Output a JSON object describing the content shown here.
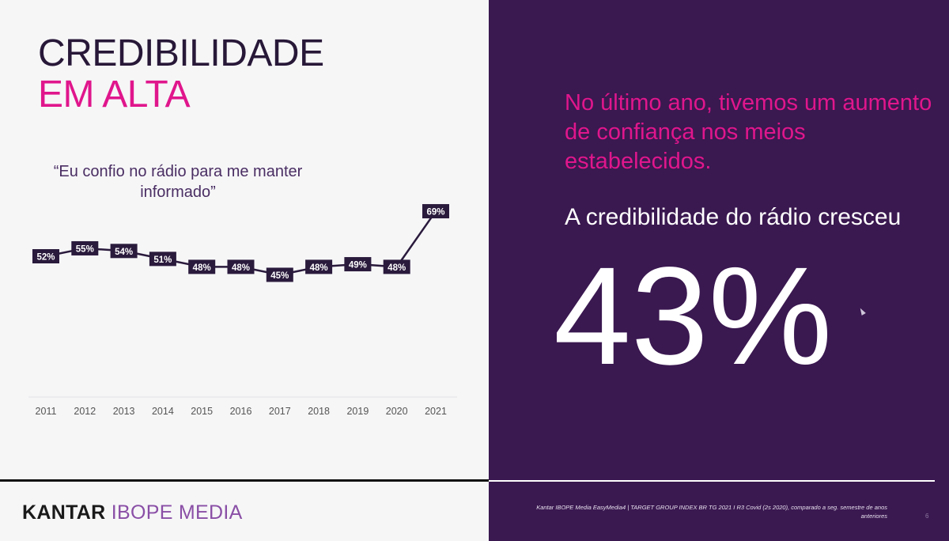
{
  "slide": {
    "title_line1": "CREDIBILIDADE",
    "title_line2": "EM ALTA",
    "quote": "“Eu confio no rádio para me manter informado”",
    "headline": "No último ano, tivemos um aumento de confiança nos meios estabelecidos.",
    "subline": "A credibilidade do rádio cresceu",
    "big_number": "43%",
    "source": "Kantar IBOPE Media EasyMedia4 | TARGET GROUP INDEX BR TG 2021 I R3 Covid (2s 2020), comparado a seg. semestre de anos anteriores",
    "page_number": "6"
  },
  "logo": {
    "part1": "KANTAR",
    "part2": "IBOPE MEDIA"
  },
  "colors": {
    "title_dark": "#281838",
    "accent_pink": "#e0168c",
    "panel_purple": "#3a1850",
    "label_box": "#2a1a3c",
    "logo_purple": "#8a4fa6"
  },
  "chart_data": {
    "type": "line",
    "categories": [
      "2011",
      "2012",
      "2013",
      "2014",
      "2015",
      "2016",
      "2017",
      "2018",
      "2019",
      "2020",
      "2021"
    ],
    "values": [
      52,
      55,
      54,
      51,
      48,
      48,
      45,
      48,
      49,
      48,
      69
    ],
    "labels": [
      "52%",
      "55%",
      "54%",
      "51%",
      "48%",
      "48%",
      "45%",
      "48%",
      "49%",
      "48%",
      "69%"
    ],
    "title": "",
    "xlabel": "",
    "ylabel": "",
    "ylim": [
      0,
      80
    ],
    "grid": false,
    "legend": false
  }
}
